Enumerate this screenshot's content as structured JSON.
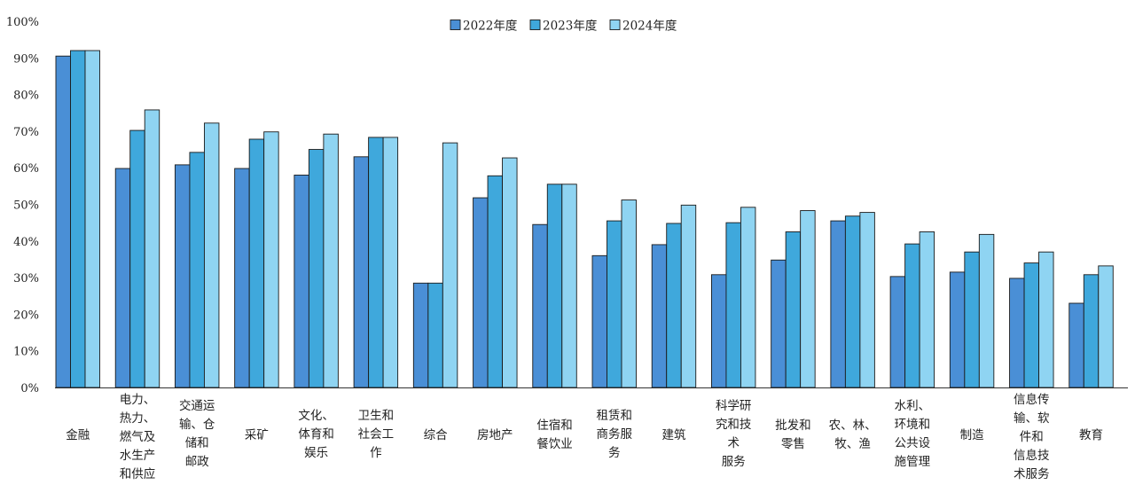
{
  "chart_data": {
    "type": "bar",
    "ylim": [
      0,
      100
    ],
    "y_ticks": [
      "0%",
      "10%",
      "20%",
      "30%",
      "40%",
      "50%",
      "60%",
      "70%",
      "80%",
      "90%",
      "100%"
    ],
    "legend_position": "top-center",
    "grid": false,
    "categories": [
      [
        "金融"
      ],
      [
        "电力、",
        "热力、",
        "燃气及",
        "水生产",
        "和供应"
      ],
      [
        "交通运",
        "输、仓",
        "储和",
        "邮政"
      ],
      [
        "采矿"
      ],
      [
        "文化、",
        "体育和",
        "娱乐"
      ],
      [
        "卫生和",
        "社会工",
        "作"
      ],
      [
        "综合"
      ],
      [
        "房地产"
      ],
      [
        "住宿和",
        "餐饮业"
      ],
      [
        "租赁和",
        "商务服",
        "务"
      ],
      [
        "建筑"
      ],
      [
        "科学研",
        "究和技",
        "术",
        "服务"
      ],
      [
        "批发和",
        "零售"
      ],
      [
        "农、林、",
        "牧、渔"
      ],
      [
        "水利、",
        "环境和",
        "公共设",
        "施管理"
      ],
      [
        "制造"
      ],
      [
        "信息传",
        "输、软",
        "件和",
        "信息技",
        "术服务"
      ],
      [
        "教育"
      ]
    ],
    "series": [
      {
        "name": "2022年度",
        "color": "#4a8fd6",
        "values": [
          90.5,
          59.8,
          60.8,
          59.8,
          58.0,
          63.0,
          28.5,
          51.8,
          44.5,
          36.0,
          39.0,
          30.8,
          34.8,
          45.5,
          30.3,
          31.5,
          29.8,
          23.0
        ]
      },
      {
        "name": "2023年度",
        "color": "#3fa8dc",
        "values": [
          92.0,
          70.2,
          64.2,
          67.8,
          65.0,
          68.3,
          28.5,
          57.8,
          55.5,
          45.5,
          44.8,
          45.0,
          42.5,
          46.8,
          39.2,
          37.0,
          34.0,
          30.8
        ]
      },
      {
        "name": "2024年度",
        "color": "#8fd4f2",
        "values": [
          92.0,
          75.8,
          72.2,
          69.8,
          69.2,
          68.3,
          66.8,
          62.7,
          55.5,
          51.2,
          49.8,
          49.2,
          48.3,
          47.8,
          42.5,
          41.8,
          37.0,
          33.2
        ]
      }
    ]
  }
}
